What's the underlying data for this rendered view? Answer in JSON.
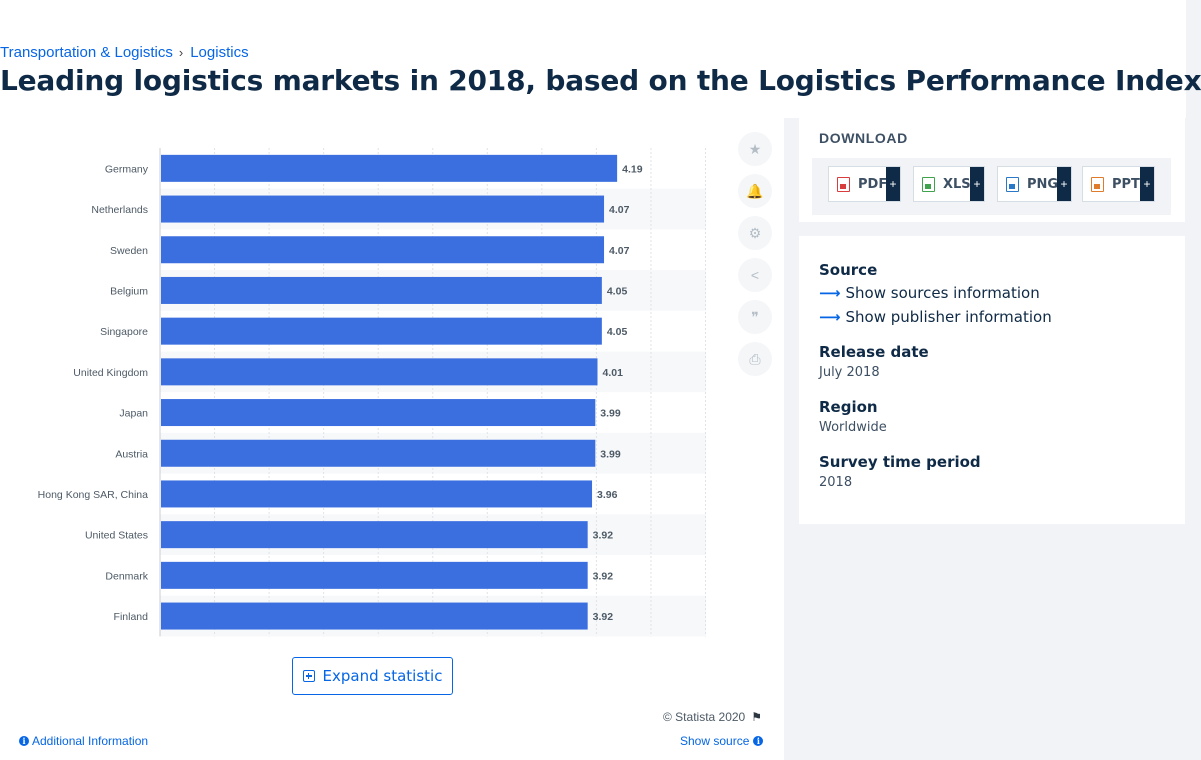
{
  "breadcrumb": {
    "parent": "Transportation & Logistics",
    "separator": "›",
    "current": "Logistics"
  },
  "page_title": "Leading logistics markets in 2018, based on the Logistics Performance Index",
  "colors": {
    "bar": "#3b6fe0",
    "accent": "#0666e5",
    "heading": "#0f2a46"
  },
  "chart_data": {
    "type": "bar",
    "orientation": "horizontal",
    "categories": [
      "Germany",
      "Netherlands",
      "Sweden",
      "Belgium",
      "Singapore",
      "United Kingdom",
      "Japan",
      "Austria",
      "Hong Kong SAR, China",
      "United States",
      "Denmark",
      "Finland"
    ],
    "values": [
      4.19,
      4.07,
      4.07,
      4.05,
      4.05,
      4.01,
      3.99,
      3.99,
      3.96,
      3.92,
      3.92,
      3.92
    ],
    "value_labels": [
      "4.19",
      "4.07",
      "4.07",
      "4.05",
      "4.05",
      "4.01",
      "3.99",
      "3.99",
      "3.96",
      "3.92",
      "3.92",
      "3.92"
    ],
    "xlim": [
      0,
      5
    ],
    "grid": true,
    "legend": "none"
  },
  "chart_tools": [
    {
      "name": "favorite-star-icon",
      "glyph": "★"
    },
    {
      "name": "notification-bell-icon",
      "glyph": "🔔"
    },
    {
      "name": "settings-gear-icon",
      "glyph": "⚙"
    },
    {
      "name": "share-icon",
      "glyph": "<"
    },
    {
      "name": "cite-quote-icon",
      "glyph": "❞"
    },
    {
      "name": "print-icon",
      "glyph": "⎙"
    }
  ],
  "expand_label": "Expand statistic",
  "copyright": "© Statista 2020",
  "additional_info": "Additional Information",
  "show_source": "Show source",
  "download": {
    "title": "DOWNLOAD",
    "formats": [
      {
        "label": "PDF",
        "color": "#d93c3c"
      },
      {
        "label": "XLS",
        "color": "#3fa34d"
      },
      {
        "label": "PNG",
        "color": "#2a79c9"
      },
      {
        "label": "PPT",
        "color": "#e07b2c"
      }
    ],
    "plus": "+"
  },
  "meta": {
    "source_heading": "Source",
    "show_sources": "Show sources information",
    "show_publisher": "Show publisher information",
    "release_heading": "Release date",
    "release_value": "July 2018",
    "region_heading": "Region",
    "region_value": "Worldwide",
    "survey_heading": "Survey time period",
    "survey_value": "2018"
  }
}
